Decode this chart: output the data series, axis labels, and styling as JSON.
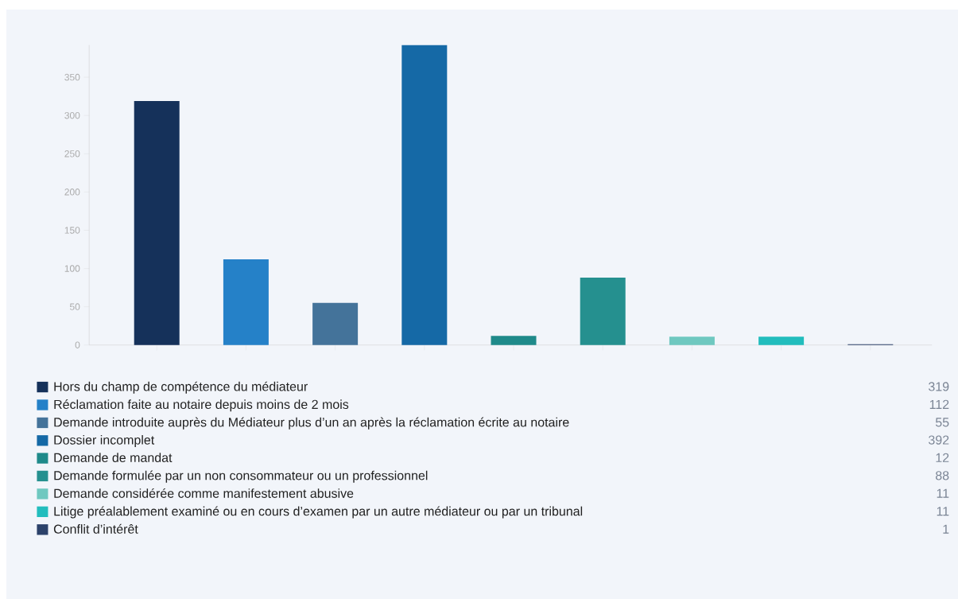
{
  "chart_data": {
    "type": "bar",
    "categories": [
      null,
      null,
      null,
      null,
      null,
      null,
      null,
      null,
      null
    ],
    "series": [
      {
        "name": "Hors du champ de compétence du médiateur",
        "color": "#15315a",
        "values": [
          319,
          null,
          null,
          null,
          null,
          null,
          null,
          null,
          null
        ]
      },
      {
        "name": "Réclamation faite au notaire depuis moins de 2 mois",
        "color": "#2581c8",
        "values": [
          null,
          112,
          null,
          null,
          null,
          null,
          null,
          null,
          null
        ]
      },
      {
        "name": "Demande introduite auprès du Médiateur plus d’un an après la réclamation écrite au notaire",
        "color": "#44739a",
        "values": [
          null,
          null,
          55,
          null,
          null,
          null,
          null,
          null,
          null
        ]
      },
      {
        "name": "Dossier incomplet",
        "color": "#1569a6",
        "values": [
          null,
          null,
          null,
          392,
          null,
          null,
          null,
          null,
          null
        ]
      },
      {
        "name": "Demande de mandat",
        "color": "#1f8a8a",
        "values": [
          null,
          null,
          null,
          null,
          12,
          null,
          null,
          null,
          null
        ]
      },
      {
        "name": "Demande formulée par un non consommateur ou un professionnel",
        "color": "#25908f",
        "values": [
          null,
          null,
          null,
          null,
          null,
          88,
          null,
          null,
          null
        ]
      },
      {
        "name": "Demande considérée comme manifestement abusive",
        "color": "#6fc8c0",
        "values": [
          null,
          null,
          null,
          null,
          null,
          null,
          11,
          null,
          null
        ]
      },
      {
        "name": "Litige préalablement examiné ou en cours d’examen par un autre médiateur ou par un tribunal",
        "color": "#22bdbd",
        "values": [
          null,
          null,
          null,
          null,
          null,
          null,
          null,
          11,
          null
        ]
      },
      {
        "name": "Conflit d’intérêt",
        "color": "#2c426a",
        "values": [
          null,
          null,
          null,
          null,
          null,
          null,
          null,
          null,
          1
        ]
      }
    ],
    "ylim": [
      0,
      392
    ],
    "yticks": [
      0,
      50,
      100,
      150,
      200,
      250,
      300,
      350
    ],
    "legend": "bottom",
    "annotations": [
      "319",
      "112",
      "55",
      "392",
      "12",
      "88",
      "11",
      "11",
      "1"
    ]
  }
}
